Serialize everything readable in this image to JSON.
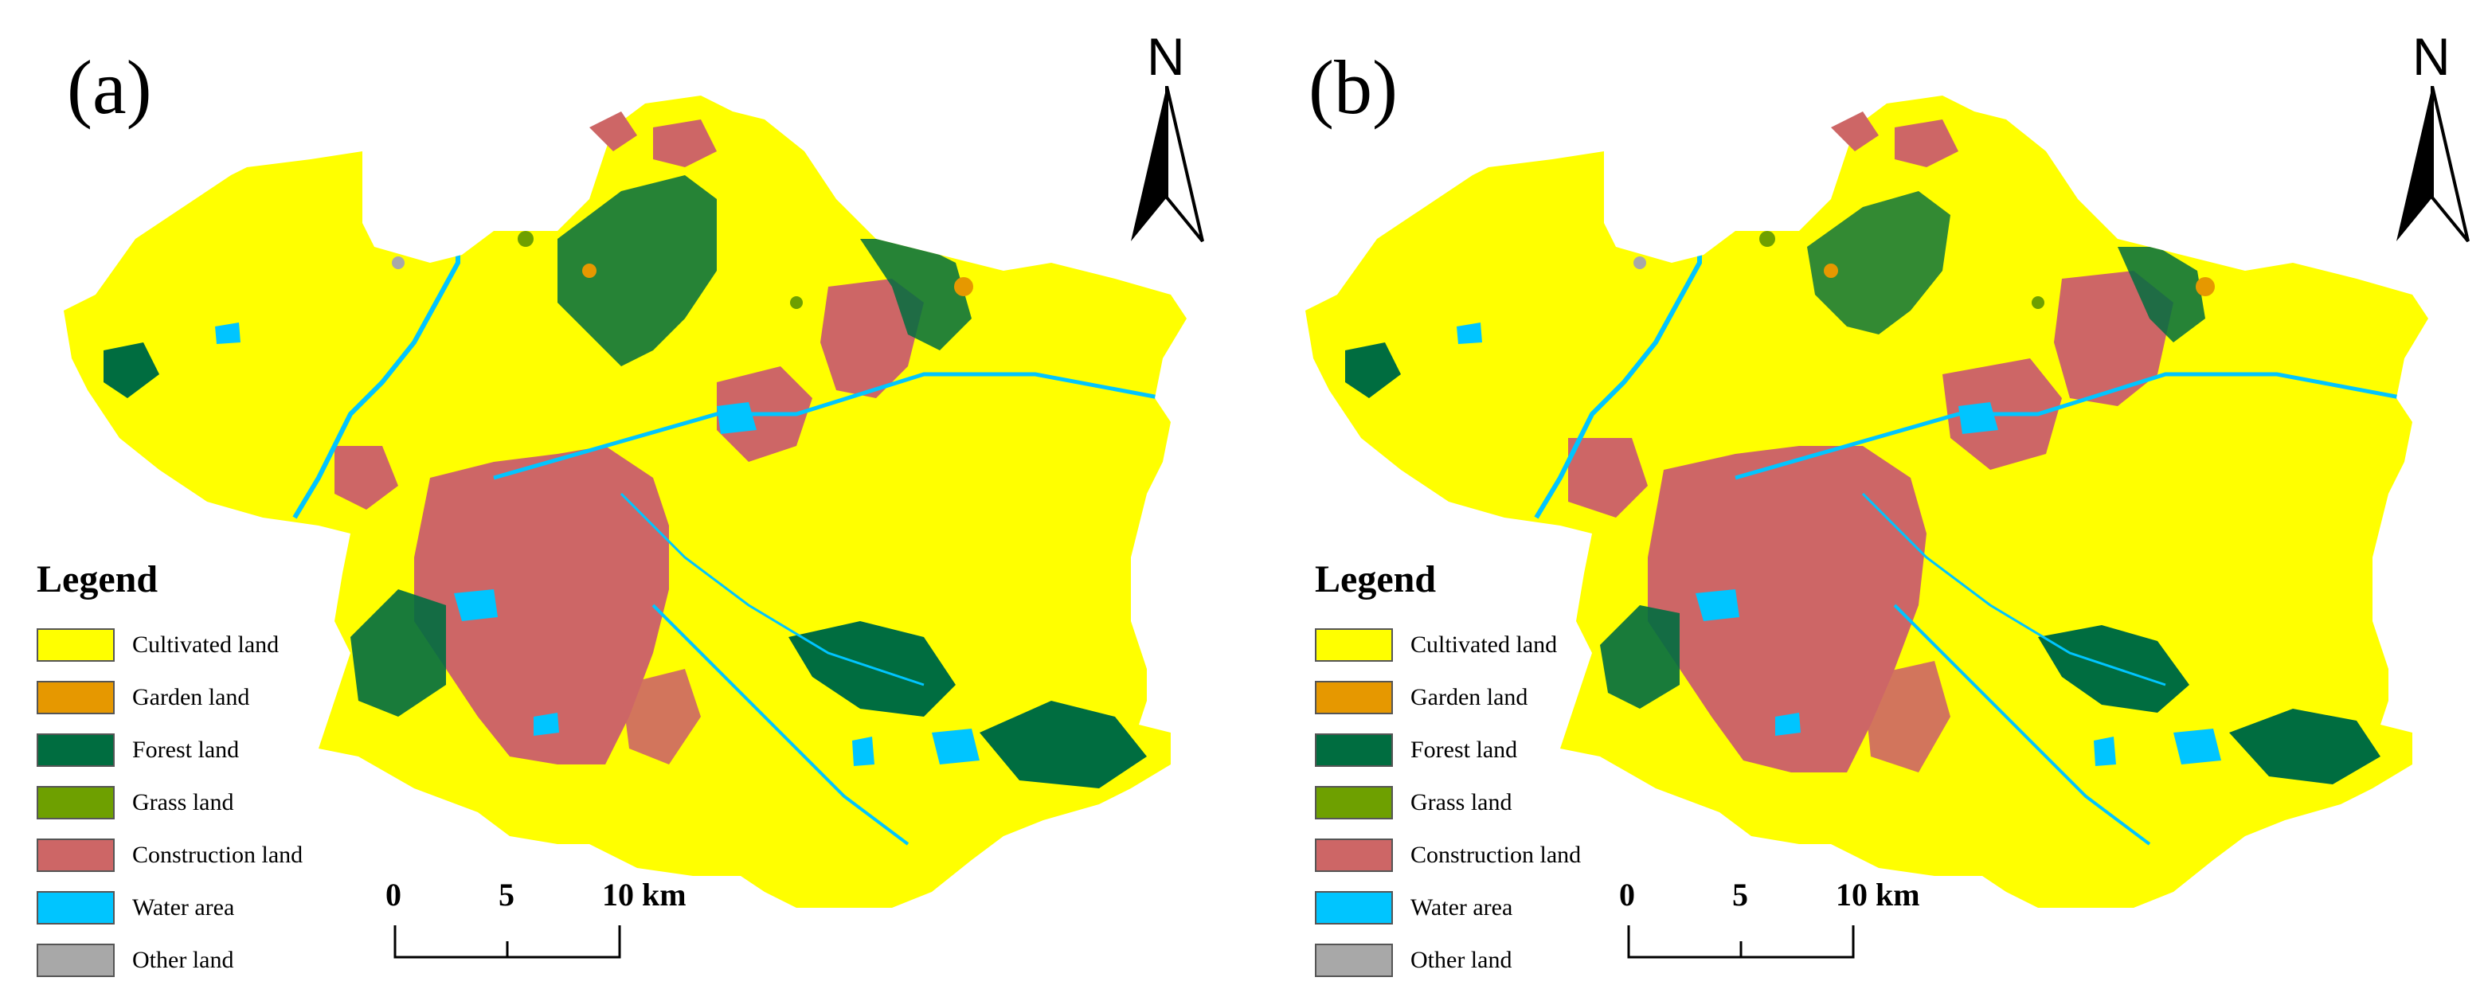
{
  "panels": [
    {
      "label": "(a)",
      "north_label": "N",
      "legend": {
        "title": "Legend",
        "items": [
          {
            "label": "Cultivated land",
            "color": "#ffff00"
          },
          {
            "label": "Garden land",
            "color": "#e69800"
          },
          {
            "label": "Forest land",
            "color": "#006d40"
          },
          {
            "label": "Grass land",
            "color": "#6ea000"
          },
          {
            "label": "Construction land",
            "color": "#cd6666"
          },
          {
            "label": "Water area",
            "color": "#00c5ff"
          },
          {
            "label": "Other land",
            "color": "#a8a8a8"
          }
        ]
      },
      "scale": {
        "ticks": [
          "0",
          "5",
          "10 km"
        ]
      }
    },
    {
      "label": "(b)",
      "north_label": "N",
      "legend": {
        "title": "Legend",
        "items": [
          {
            "label": "Cultivated land",
            "color": "#ffff00"
          },
          {
            "label": "Garden land",
            "color": "#e69800"
          },
          {
            "label": "Forest land",
            "color": "#006d40"
          },
          {
            "label": "Grass land",
            "color": "#6ea000"
          },
          {
            "label": "Construction land",
            "color": "#cd6666"
          },
          {
            "label": "Water area",
            "color": "#00c5ff"
          },
          {
            "label": "Other land",
            "color": "#a8a8a8"
          }
        ]
      },
      "scale": {
        "ticks": [
          "0",
          "5",
          "10 km"
        ]
      }
    }
  ]
}
